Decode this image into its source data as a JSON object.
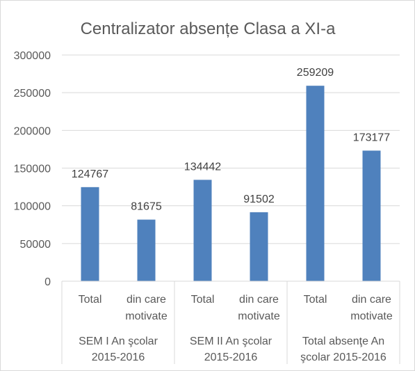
{
  "chart_data": {
    "type": "bar",
    "title": "Centralizator absențe Clasa a XI-a",
    "xlabel": "",
    "ylabel": "",
    "ylim": [
      0,
      300000
    ],
    "yticks": [
      "0",
      "50000",
      "100000",
      "150000",
      "200000",
      "250000",
      "300000"
    ],
    "grid": true,
    "legend": "none",
    "bar_color": "#4f81bd",
    "groups": [
      {
        "label_lines": [
          "SEM I An şcolar",
          "2015-2016"
        ],
        "bars": [
          {
            "category": [
              "Total"
            ],
            "value": 124767,
            "value_label": "124767"
          },
          {
            "category": [
              "din care",
              "motivate"
            ],
            "value": 81675,
            "value_label": "81675"
          }
        ]
      },
      {
        "label_lines": [
          "SEM II An şcolar",
          "2015-2016"
        ],
        "bars": [
          {
            "category": [
              "Total"
            ],
            "value": 134442,
            "value_label": "134442"
          },
          {
            "category": [
              "din care",
              "motivate"
            ],
            "value": 91502,
            "value_label": "91502"
          }
        ]
      },
      {
        "label_lines": [
          "Total absenţe An",
          "şcolar 2015-2016"
        ],
        "bars": [
          {
            "category": [
              "Total"
            ],
            "value": 259209,
            "value_label": "259209"
          },
          {
            "category": [
              "din care",
              "motivate"
            ],
            "value": 173177,
            "value_label": "173177"
          }
        ]
      }
    ]
  }
}
